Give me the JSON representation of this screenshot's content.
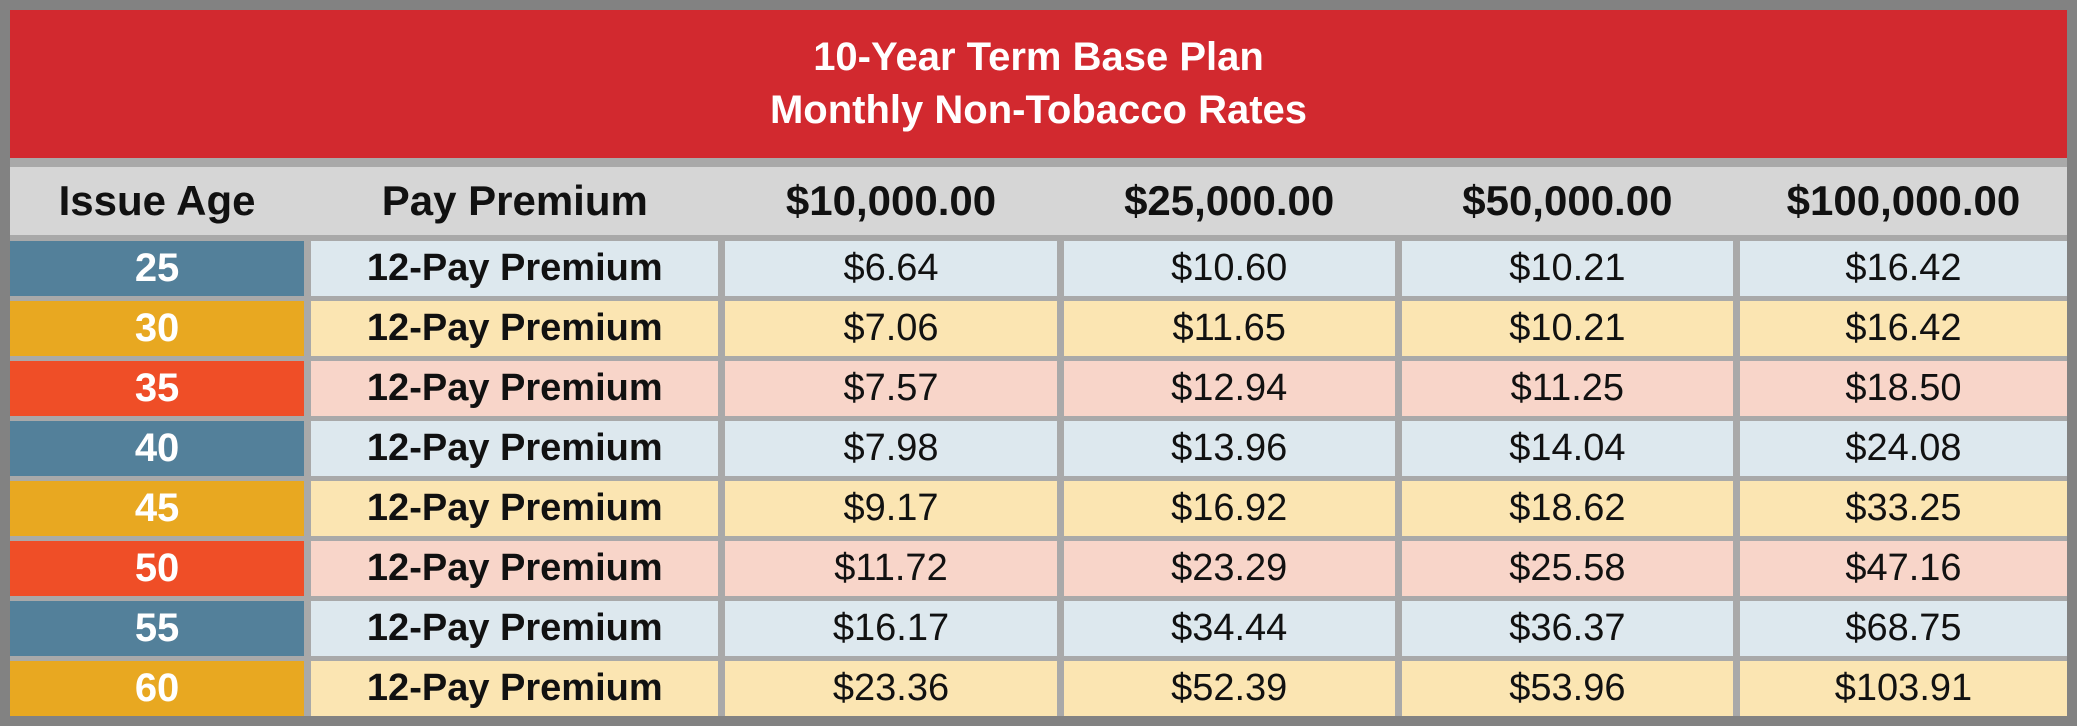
{
  "title": {
    "line1": "10-Year Term Base Plan",
    "line2": "Monthly Non-Tobacco Rates"
  },
  "columns": [
    "Issue Age",
    "Pay Premium",
    "$10,000.00",
    "$25,000.00",
    "$50,000.00",
    "$100,000.00"
  ],
  "rows": [
    {
      "age": "25",
      "premium_type": "12-Pay Premium",
      "values": [
        "$6.64",
        "$10.60",
        "$10.21",
        "$16.42"
      ],
      "theme": "blue"
    },
    {
      "age": "30",
      "premium_type": "12-Pay Premium",
      "values": [
        "$7.06",
        "$11.65",
        "$10.21",
        "$16.42"
      ],
      "theme": "gold"
    },
    {
      "age": "35",
      "premium_type": "12-Pay Premium",
      "values": [
        "$7.57",
        "$12.94",
        "$11.25",
        "$18.50"
      ],
      "theme": "orange"
    },
    {
      "age": "40",
      "premium_type": "12-Pay Premium",
      "values": [
        "$7.98",
        "$13.96",
        "$14.04",
        "$24.08"
      ],
      "theme": "blue"
    },
    {
      "age": "45",
      "premium_type": "12-Pay Premium",
      "values": [
        "$9.17",
        "$16.92",
        "$18.62",
        "$33.25"
      ],
      "theme": "gold"
    },
    {
      "age": "50",
      "premium_type": "12-Pay Premium",
      "values": [
        "$11.72",
        "$23.29",
        "$25.58",
        "$47.16"
      ],
      "theme": "orange"
    },
    {
      "age": "55",
      "premium_type": "12-Pay Premium",
      "values": [
        "$16.17",
        "$34.44",
        "$36.37",
        "$68.75"
      ],
      "theme": "blue"
    },
    {
      "age": "60",
      "premium_type": "12-Pay Premium",
      "values": [
        "$23.36",
        "$52.39",
        "$53.96",
        "$103.91"
      ],
      "theme": "gold"
    }
  ],
  "colors": {
    "banner_red": "#d2292f",
    "header_gray": "#d6d6d6",
    "frame_gray": "#828282",
    "gridline_gray": "#a9a9a9",
    "age_blue": "#53809a",
    "age_gold": "#e8a821",
    "age_orange": "#ef4e27",
    "row_blue": "#dde8ee",
    "row_gold": "#fbe5b2",
    "row_pink": "#f8d5c9"
  },
  "chart_data": {
    "type": "table",
    "title": "10-Year Term Base Plan Monthly Non-Tobacco Rates",
    "columns": [
      "Issue Age",
      "Pay Premium",
      "$10,000.00",
      "$25,000.00",
      "$50,000.00",
      "$100,000.00"
    ],
    "rows": [
      [
        "25",
        "12-Pay Premium",
        6.64,
        10.6,
        10.21,
        16.42
      ],
      [
        "30",
        "12-Pay Premium",
        7.06,
        11.65,
        10.21,
        16.42
      ],
      [
        "35",
        "12-Pay Premium",
        7.57,
        12.94,
        11.25,
        18.5
      ],
      [
        "40",
        "12-Pay Premium",
        7.98,
        13.96,
        14.04,
        24.08
      ],
      [
        "45",
        "12-Pay Premium",
        9.17,
        16.92,
        18.62,
        33.25
      ],
      [
        "50",
        "12-Pay Premium",
        11.72,
        23.29,
        25.58,
        47.16
      ],
      [
        "55",
        "12-Pay Premium",
        16.17,
        34.44,
        36.37,
        68.75
      ],
      [
        "60",
        "12-Pay Premium",
        23.36,
        52.39,
        53.96,
        103.91
      ]
    ]
  }
}
